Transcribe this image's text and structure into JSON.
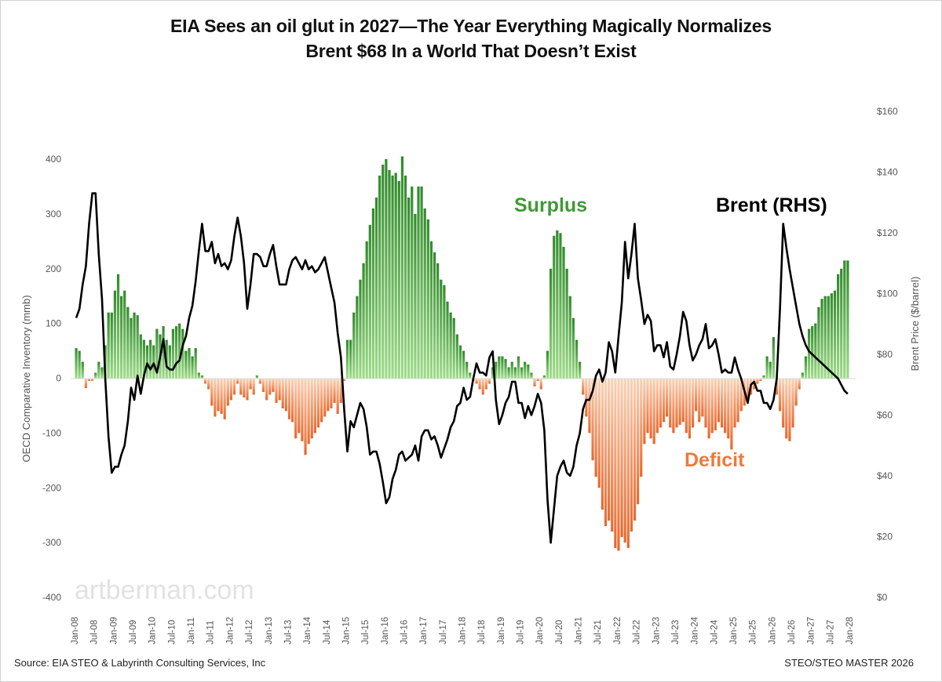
{
  "chart_data": {
    "type": "bar+line",
    "title": "EIA Sees an oil glut in 2027—The Year Everything Magically Normalizes",
    "subtitle": "Brent $68 In a World That Doesn’t Exist",
    "ylabel_left": "OECD Comparative Inventory (mmb)",
    "ylabel_right": "Brent Price ($/barrel)",
    "ylim_left": [
      -400,
      400
    ],
    "ylim_right": [
      0,
      160
    ],
    "left_ticks": [
      "400",
      "300",
      "200",
      "100",
      "0",
      "-100",
      "-200",
      "-300",
      "-400"
    ],
    "right_ticks": [
      "$160",
      "$140",
      "$120",
      "$100",
      "$80",
      "$60",
      "$40",
      "$20",
      "$0"
    ],
    "x_start": "Jan-08",
    "x_tick_labels": [
      "Jan-08",
      "Jul-08",
      "Jan-09",
      "Jul-09",
      "Jan-10",
      "Jul-10",
      "Jan-11",
      "Jul-11",
      "Jan-12",
      "Jul-12",
      "Jan-13",
      "Jul-13",
      "Jan-14",
      "Jul-14",
      "Jan-15",
      "Jul-15",
      "Jan-16",
      "Jul-16",
      "Jan-17",
      "Jul-17",
      "Jan-18",
      "Jul-18",
      "Jan-19",
      "Jul-19",
      "Jan-20",
      "Jul-20",
      "Jan-21",
      "Jul-21",
      "Jan-22",
      "Jul-22",
      "Jan-23",
      "Jul-23",
      "Jan-24",
      "Jul-24",
      "Jan-25",
      "Jul-25",
      "Jan-26",
      "Jul-26",
      "Jan-27",
      "Jul-27",
      "Jan-28"
    ],
    "grid": false,
    "annotations": {
      "surplus": "Surplus",
      "deficit": "Deficit",
      "brent": "Brent (RHS)"
    },
    "colors": {
      "surplus": "#3f9a35",
      "deficit": "#ec7a3c",
      "brent": "#000000"
    },
    "series": [
      {
        "name": "OECD Comparative Inventory",
        "axis": "left",
        "kind": "bar",
        "values": [
          55,
          50,
          30,
          -18,
          -5,
          -5,
          10,
          30,
          20,
          60,
          120,
          120,
          160,
          190,
          150,
          160,
          130,
          110,
          120,
          115,
          80,
          70,
          60,
          70,
          60,
          90,
          80,
          95,
          70,
          60,
          90,
          95,
          100,
          90,
          50,
          55,
          40,
          55,
          10,
          5,
          -10,
          -20,
          -50,
          -70,
          -60,
          -65,
          -75,
          -50,
          -40,
          -30,
          -10,
          -30,
          -35,
          -40,
          -20,
          -30,
          5,
          -10,
          -25,
          -40,
          -30,
          -25,
          -45,
          -40,
          -55,
          -60,
          -75,
          -80,
          -110,
          -100,
          -115,
          -140,
          -120,
          -110,
          -100,
          -90,
          -80,
          -70,
          -60,
          -55,
          -45,
          -65,
          -45,
          -5,
          70,
          70,
          120,
          150,
          180,
          210,
          250,
          280,
          310,
          330,
          370,
          390,
          400,
          380,
          370,
          375,
          360,
          405,
          370,
          330,
          350,
          300,
          350,
          350,
          310,
          290,
          250,
          230,
          210,
          180,
          170,
          140,
          120,
          110,
          80,
          60,
          50,
          30,
          10,
          -5,
          -10,
          -20,
          -30,
          -20,
          -10,
          20,
          30,
          40,
          40,
          35,
          20,
          30,
          20,
          40,
          20,
          30,
          25,
          10,
          -15,
          -5,
          -20,
          5,
          50,
          200,
          260,
          270,
          265,
          240,
          200,
          150,
          110,
          70,
          30,
          -30,
          -70,
          -100,
          -150,
          -180,
          -200,
          -240,
          -270,
          -260,
          -280,
          -310,
          -315,
          -290,
          -300,
          -310,
          -280,
          -260,
          -230,
          -180,
          -120,
          -100,
          -110,
          -120,
          -100,
          -90,
          -80,
          -70,
          -90,
          -100,
          -90,
          -85,
          -80,
          -100,
          -110,
          -90,
          -60,
          -80,
          -70,
          -90,
          -110,
          -100,
          -95,
          -80,
          -90,
          -100,
          -110,
          -130,
          -90,
          -80,
          -60,
          -50,
          -40,
          -30,
          -20,
          -10,
          -5,
          5,
          40,
          30,
          75,
          -30,
          -60,
          -90,
          -110,
          -115,
          -90,
          -50,
          -20,
          10,
          40,
          90,
          95,
          100,
          130,
          145,
          150,
          150,
          155,
          160,
          190,
          200,
          215,
          215
        ]
      },
      {
        "name": "Brent (RHS)",
        "axis": "right",
        "kind": "line",
        "values": [
          92,
          95,
          103,
          109,
          123,
          133,
          133,
          113,
          98,
          72,
          53,
          41,
          43,
          43,
          47,
          50,
          58,
          69,
          65,
          73,
          67,
          73,
          77,
          75,
          77,
          74,
          79,
          85,
          76,
          75,
          75,
          77,
          78,
          83,
          86,
          92,
          96,
          104,
          114,
          123,
          114,
          114,
          117,
          110,
          113,
          109,
          110,
          108,
          111,
          119,
          125,
          119,
          110,
          95,
          103,
          113,
          113,
          112,
          109,
          109,
          113,
          116,
          109,
          103,
          103,
          103,
          108,
          111,
          112,
          110,
          108,
          111,
          108,
          109,
          107,
          108,
          110,
          112,
          107,
          102,
          97,
          87,
          79,
          62,
          48,
          58,
          56,
          60,
          64,
          62,
          56,
          47,
          48,
          48,
          44,
          38,
          31,
          33,
          39,
          42,
          47,
          48,
          45,
          46,
          47,
          50,
          45,
          53,
          55,
          55,
          52,
          53,
          50,
          46,
          49,
          52,
          56,
          58,
          63,
          64,
          69,
          65,
          66,
          72,
          77,
          74,
          74,
          73,
          79,
          81,
          65,
          57,
          60,
          64,
          66,
          71,
          71,
          64,
          64,
          59,
          63,
          60,
          63,
          67,
          64,
          55,
          32,
          18,
          29,
          40,
          43,
          45,
          41,
          40,
          43,
          50,
          54,
          62,
          65,
          65,
          68,
          73,
          75,
          71,
          74,
          84,
          81,
          74,
          86,
          97,
          117,
          105,
          113,
          123,
          105,
          98,
          90,
          93,
          91,
          81,
          83,
          83,
          79,
          84,
          76,
          75,
          80,
          86,
          94,
          91,
          83,
          78,
          80,
          83,
          85,
          90,
          82,
          83,
          85,
          80,
          74,
          75,
          74,
          74,
          79,
          75,
          72,
          68,
          64,
          70,
          71,
          68,
          68,
          64,
          64,
          62,
          65,
          72,
          95,
          123,
          115,
          108,
          102,
          96,
          90,
          86,
          83,
          81,
          80,
          79,
          78,
          77,
          76,
          75,
          74,
          73,
          72,
          70,
          68,
          67
        ]
      }
    ]
  },
  "watermark": "artberman.com",
  "footer": {
    "source": "Source: EIA STEO & Labyrinth Consulting Services, Inc",
    "file": "STEO/STEO MASTER 2026"
  }
}
